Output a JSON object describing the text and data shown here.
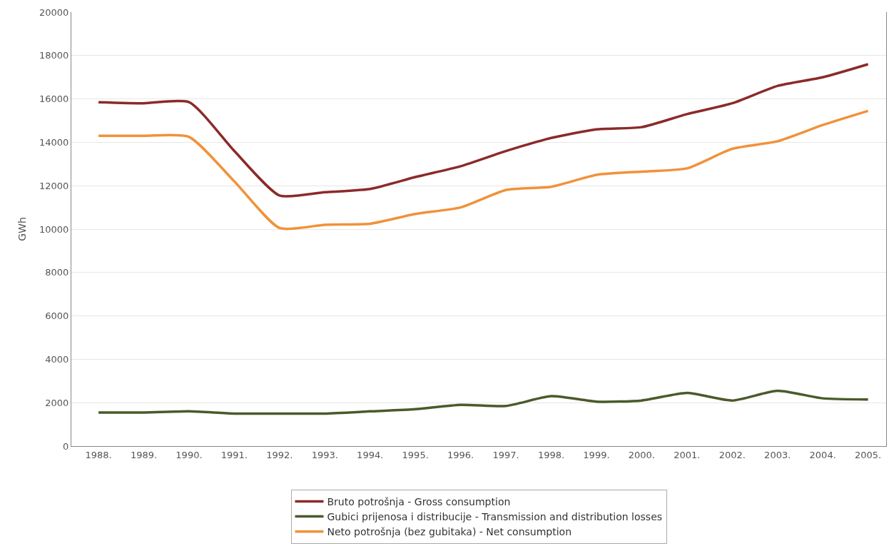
{
  "chart_data": {
    "type": "line",
    "ylabel": "GWh",
    "categories": [
      "1988.",
      "1989.",
      "1990.",
      "1991.",
      "1992.",
      "1993.",
      "1994.",
      "1995.",
      "1996.",
      "1997.",
      "1998.",
      "1999.",
      "2000.",
      "2001.",
      "2002.",
      "2003.",
      "2004.",
      "2005."
    ],
    "series": [
      {
        "name": "Bruto potrošnja - Gross consumption",
        "color": "#8b2a2a",
        "values": [
          15850,
          15800,
          15850,
          13600,
          11550,
          11700,
          11850,
          12400,
          12900,
          13600,
          14200,
          14600,
          14700,
          15300,
          15800,
          16600,
          17000,
          17600
        ]
      },
      {
        "name": "Gubici prijenosa i distribucije - Transmission and distribution losses",
        "color": "#4a5a2a",
        "values": [
          1550,
          1550,
          1600,
          1500,
          1500,
          1500,
          1600,
          1700,
          1900,
          1850,
          2300,
          2050,
          2100,
          2450,
          2100,
          2550,
          2200,
          2150
        ]
      },
      {
        "name": "Neto potrošnja (bez gubitaka) - Net consumption",
        "color": "#f0923a",
        "values": [
          14300,
          14300,
          14250,
          12200,
          10050,
          10200,
          10250,
          10700,
          11000,
          11800,
          11950,
          12500,
          12650,
          12800,
          13700,
          14050,
          14800,
          15450
        ]
      }
    ],
    "ylim": [
      0,
      20000
    ],
    "yticks": [
      0,
      2000,
      4000,
      6000,
      8000,
      10000,
      12000,
      14000,
      16000,
      18000,
      20000
    ],
    "grid": "y",
    "legend": "bottom",
    "line_style": "solid",
    "marker": "none"
  }
}
